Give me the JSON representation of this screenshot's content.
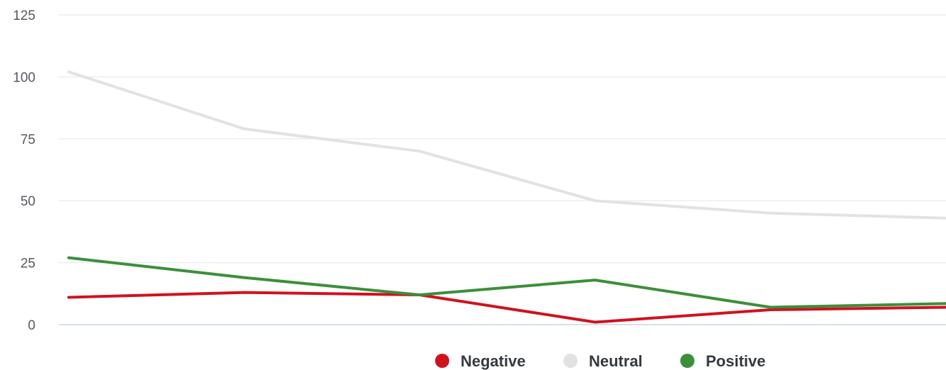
{
  "chart_data": {
    "type": "line",
    "x": [
      1,
      2,
      3,
      4,
      5,
      6
    ],
    "ylim": [
      0,
      125
    ],
    "y_ticks": [
      0,
      25,
      50,
      75,
      100,
      125
    ],
    "y_tick_labels": [
      "0",
      "25",
      "50",
      "75",
      "100",
      "125"
    ],
    "grid": true,
    "legend_position": "bottom",
    "series": [
      {
        "name": "Negative",
        "color": "#d0121f",
        "values": [
          11,
          13,
          12,
          1,
          6,
          7
        ]
      },
      {
        "name": "Neutral",
        "color": "#e2e2e2",
        "values": [
          102,
          79,
          70,
          50,
          45,
          43
        ]
      },
      {
        "name": "Positive",
        "color": "#3b8f3a",
        "values": [
          27,
          19,
          12,
          18,
          7,
          8.5
        ]
      }
    ]
  }
}
